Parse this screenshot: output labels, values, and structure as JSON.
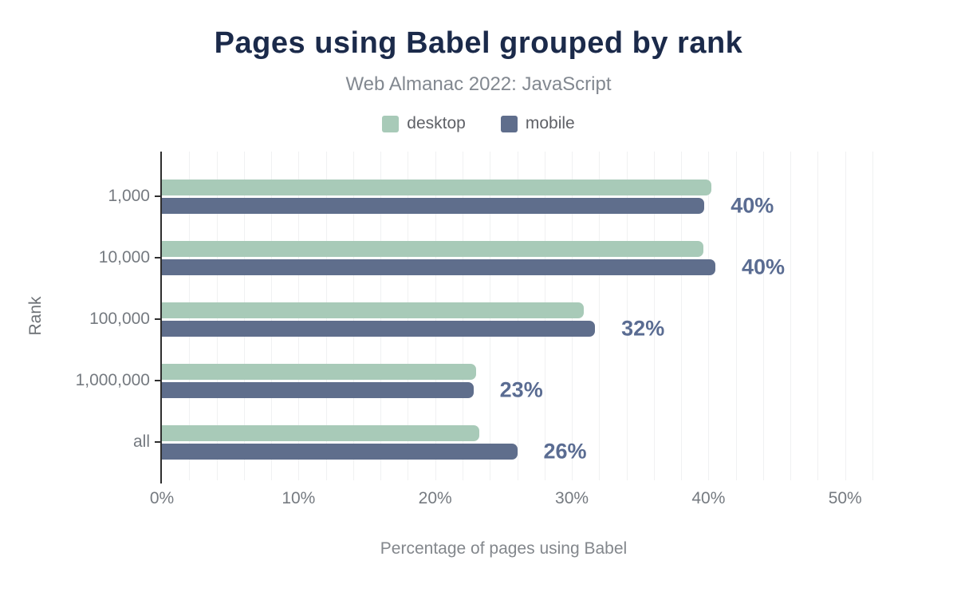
{
  "title": "Pages using Babel grouped by rank",
  "subtitle": "Web Almanac 2022: JavaScript",
  "colors": {
    "title": "#1b2a4a",
    "desktop_bar": "#a8cab8",
    "mobile_bar": "#5f6e8c",
    "data_label": "#5a6c92",
    "axis_line": "#2f2f2f",
    "gridline": "#f0f1f2",
    "tick_text": "#757a80"
  },
  "chart_data": {
    "type": "bar",
    "orientation": "horizontal",
    "title": "Pages using Babel grouped by rank",
    "subtitle": "Web Almanac 2022: JavaScript",
    "xlabel": "Percentage of pages using Babel",
    "ylabel": "Rank",
    "categories": [
      "1,000",
      "10,000",
      "100,000",
      "1,000,000",
      "all"
    ],
    "series": [
      {
        "name": "desktop",
        "color": "#a8cab8",
        "values": [
          40.2,
          39.6,
          30.9,
          23.0,
          23.2
        ]
      },
      {
        "name": "mobile",
        "color": "#5f6e8c",
        "values": [
          39.7,
          40.5,
          31.7,
          22.8,
          26.0
        ]
      }
    ],
    "data_labels": [
      "40%",
      "40%",
      "32%",
      "23%",
      "26%"
    ],
    "data_label_series": "mobile",
    "xticks": [
      "0%",
      "10%",
      "20%",
      "30%",
      "40%",
      "50%"
    ],
    "xtick_values": [
      0,
      10,
      20,
      30,
      40,
      50
    ],
    "xlim": [
      0,
      52
    ],
    "grid_step": 2,
    "grid": true,
    "legend_position": "top"
  }
}
